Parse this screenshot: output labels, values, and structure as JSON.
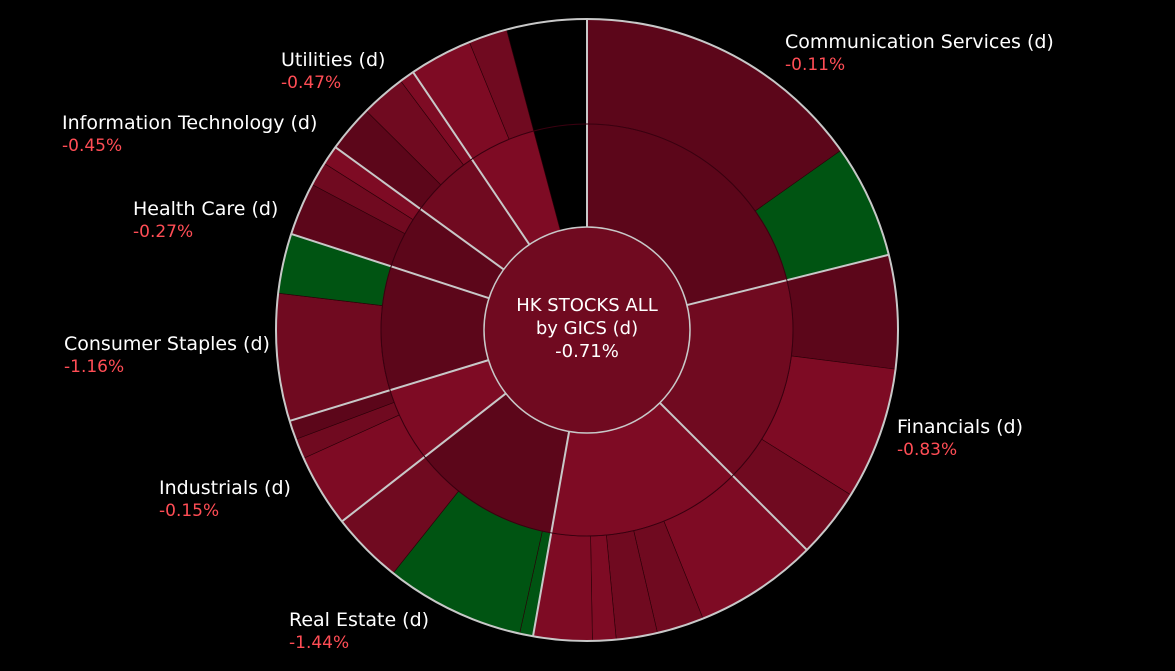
{
  "chart_data": {
    "type": "sunburst",
    "title": "HK STOCKS ALL",
    "subtitle": "by GICS (d)",
    "total_change": "-0.71%",
    "colors": {
      "background": "#000000",
      "divider": "#c8c8c8",
      "negative_light": "#7e0b24",
      "negative_mid": "#700a20",
      "negative_dark": "#5c061a",
      "positive": "#005412",
      "label_value": "#ff4d55"
    },
    "sectors": [
      {
        "name": "Communication Services (d)",
        "change": "-0.11%",
        "tone": "negative_dark",
        "children": [
          {
            "share": 0.72,
            "tone": "negative_dark"
          },
          {
            "share": 0.28,
            "tone": "positive"
          }
        ]
      },
      {
        "name": "Financials (d)",
        "change": "-0.83%",
        "tone": "negative_mid",
        "children": [
          {
            "share": 0.36,
            "tone": "negative_dark"
          },
          {
            "share": 0.42,
            "tone": "negative_light"
          },
          {
            "share": 0.22,
            "tone": "negative_mid"
          }
        ]
      },
      {
        "name": "Real Estate (d)",
        "change": "-1.44%",
        "tone": "negative_light",
        "children": [
          {
            "share": 0.42,
            "tone": "negative_light"
          },
          {
            "share": 0.16,
            "tone": "negative_mid"
          },
          {
            "share": 0.14,
            "tone": "negative_mid"
          },
          {
            "share": 0.08,
            "tone": "negative_light"
          },
          {
            "share": 0.2,
            "tone": "negative_light"
          }
        ]
      },
      {
        "name": "Industrials (d)",
        "change": "-0.15%",
        "tone": "negative_dark",
        "children": [
          {
            "share": 0.06,
            "tone": "positive"
          },
          {
            "share": 0.62,
            "tone": "positive"
          },
          {
            "share": 0.32,
            "tone": "negative_mid"
          }
        ]
      },
      {
        "name": "Consumer Staples (d)",
        "change": "-1.16%",
        "tone": "negative_light",
        "children": [
          {
            "share": 0.65,
            "tone": "negative_light"
          },
          {
            "share": 0.18,
            "tone": "negative_mid"
          },
          {
            "share": 0.17,
            "tone": "negative_dark"
          }
        ]
      },
      {
        "name": "Health Care (d)",
        "change": "-0.27%",
        "tone": "negative_dark",
        "children": [
          {
            "share": 0.68,
            "tone": "negative_mid"
          },
          {
            "share": 0.32,
            "tone": "positive"
          }
        ]
      },
      {
        "name": "Information Technology (d)",
        "change": "-0.45%",
        "tone": "negative_dark",
        "children": [
          {
            "share": 0.55,
            "tone": "negative_dark"
          },
          {
            "share": 0.25,
            "tone": "negative_mid"
          },
          {
            "share": 0.2,
            "tone": "negative_light"
          }
        ]
      },
      {
        "name": "Utilities (d)",
        "change": "-0.47%",
        "tone": "negative_mid",
        "children": [
          {
            "share": 0.44,
            "tone": "negative_dark"
          },
          {
            "share": 0.42,
            "tone": "negative_mid"
          },
          {
            "share": 0.14,
            "tone": "negative_light"
          }
        ]
      },
      {
        "name": "",
        "change": "",
        "tone": "negative_light",
        "children": [
          {
            "share": 0.62,
            "tone": "negative_light"
          },
          {
            "share": 0.38,
            "tone": "negative_mid"
          }
        ]
      }
    ]
  }
}
